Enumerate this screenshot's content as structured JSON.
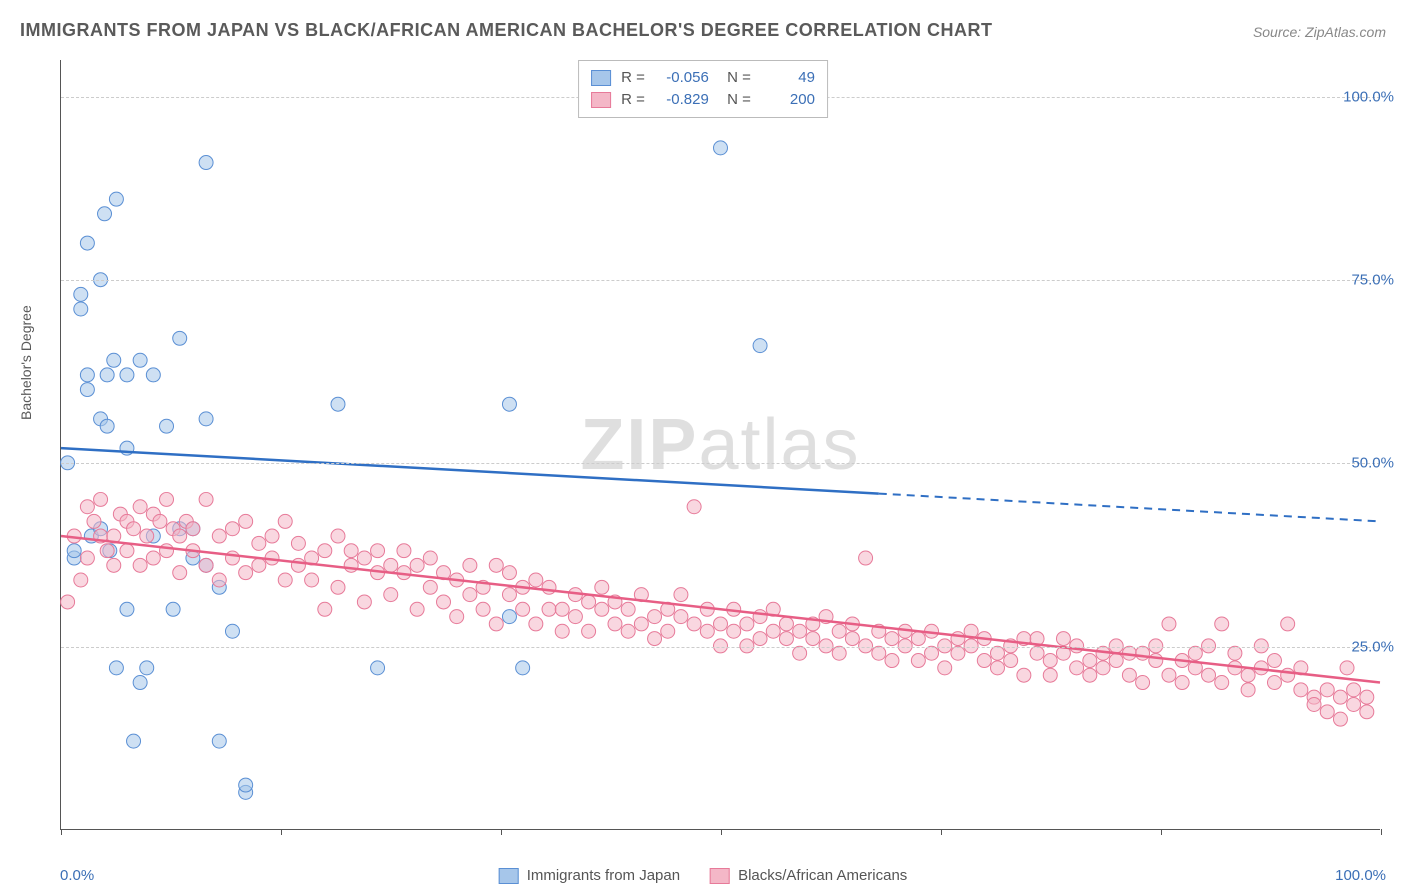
{
  "title": "IMMIGRANTS FROM JAPAN VS BLACK/AFRICAN AMERICAN BACHELOR'S DEGREE CORRELATION CHART",
  "source": "Source: ZipAtlas.com",
  "y_axis_label": "Bachelor's Degree",
  "watermark_a": "ZIP",
  "watermark_b": "atlas",
  "chart": {
    "type": "scatter",
    "xlim": [
      0,
      100
    ],
    "ylim": [
      0,
      105
    ],
    "y_ticks": [
      25,
      50,
      75,
      100
    ],
    "y_tick_labels": [
      "25.0%",
      "50.0%",
      "75.0%",
      "100.0%"
    ],
    "x_ticks": [
      0,
      16.67,
      33.33,
      50,
      66.67,
      83.33,
      100
    ],
    "x_min_label": "0.0%",
    "x_max_label": "100.0%",
    "grid_color": "#cccccc",
    "background_color": "#ffffff",
    "marker_radius": 7,
    "marker_opacity": 0.55,
    "line_width": 2.5,
    "series": [
      {
        "name": "Immigrants from Japan",
        "color_fill": "#a6c6ea",
        "color_stroke": "#5a8fd4",
        "line_color": "#2f6fc4",
        "R": "-0.056",
        "N": "49",
        "trend": {
          "y_at_x0": 52,
          "y_at_x100": 42,
          "solid_until_x": 62
        },
        "points": [
          [
            0.5,
            50
          ],
          [
            1,
            37
          ],
          [
            1,
            38
          ],
          [
            1.5,
            73
          ],
          [
            1.5,
            71
          ],
          [
            2,
            80
          ],
          [
            2,
            62
          ],
          [
            2,
            60
          ],
          [
            2.3,
            40
          ],
          [
            3,
            75
          ],
          [
            3,
            56
          ],
          [
            3,
            41
          ],
          [
            3.3,
            84
          ],
          [
            3.5,
            62
          ],
          [
            3.5,
            55
          ],
          [
            3.7,
            38
          ],
          [
            4,
            64
          ],
          [
            4.2,
            22
          ],
          [
            4.2,
            86
          ],
          [
            5,
            52
          ],
          [
            5,
            62
          ],
          [
            5,
            30
          ],
          [
            5.5,
            12
          ],
          [
            6,
            64
          ],
          [
            6,
            20
          ],
          [
            6.5,
            22
          ],
          [
            7,
            62
          ],
          [
            7,
            40
          ],
          [
            8,
            55
          ],
          [
            8.5,
            30
          ],
          [
            9,
            67
          ],
          [
            9,
            41
          ],
          [
            10,
            41
          ],
          [
            10,
            37
          ],
          [
            11,
            91
          ],
          [
            11,
            56
          ],
          [
            11,
            36
          ],
          [
            12,
            33
          ],
          [
            12,
            12
          ],
          [
            13,
            27
          ],
          [
            14,
            5
          ],
          [
            14,
            6
          ],
          [
            21,
            58
          ],
          [
            24,
            22
          ],
          [
            34,
            58
          ],
          [
            34,
            29
          ],
          [
            35,
            22
          ],
          [
            50,
            93
          ],
          [
            53,
            66
          ]
        ]
      },
      {
        "name": "Blacks/African Americans",
        "color_fill": "#f4b7c7",
        "color_stroke": "#e77a99",
        "line_color": "#e75e85",
        "R": "-0.829",
        "N": "200",
        "trend": {
          "y_at_x0": 40,
          "y_at_x100": 20,
          "solid_until_x": 100
        },
        "points": [
          [
            0.5,
            31
          ],
          [
            1,
            40
          ],
          [
            1.5,
            34
          ],
          [
            2,
            44
          ],
          [
            2,
            37
          ],
          [
            2.5,
            42
          ],
          [
            3,
            40
          ],
          [
            3,
            45
          ],
          [
            3.5,
            38
          ],
          [
            4,
            40
          ],
          [
            4,
            36
          ],
          [
            4.5,
            43
          ],
          [
            5,
            38
          ],
          [
            5,
            42
          ],
          [
            5.5,
            41
          ],
          [
            6,
            44
          ],
          [
            6,
            36
          ],
          [
            6.5,
            40
          ],
          [
            7,
            43
          ],
          [
            7,
            37
          ],
          [
            7.5,
            42
          ],
          [
            8,
            45
          ],
          [
            8,
            38
          ],
          [
            8.5,
            41
          ],
          [
            9,
            40
          ],
          [
            9,
            35
          ],
          [
            9.5,
            42
          ],
          [
            10,
            38
          ],
          [
            10,
            41
          ],
          [
            11,
            45
          ],
          [
            11,
            36
          ],
          [
            12,
            40
          ],
          [
            12,
            34
          ],
          [
            13,
            41
          ],
          [
            13,
            37
          ],
          [
            14,
            42
          ],
          [
            14,
            35
          ],
          [
            15,
            39
          ],
          [
            15,
            36
          ],
          [
            16,
            37
          ],
          [
            16,
            40
          ],
          [
            17,
            42
          ],
          [
            17,
            34
          ],
          [
            18,
            36
          ],
          [
            18,
            39
          ],
          [
            19,
            37
          ],
          [
            19,
            34
          ],
          [
            20,
            30
          ],
          [
            20,
            38
          ],
          [
            21,
            40
          ],
          [
            21,
            33
          ],
          [
            22,
            36
          ],
          [
            22,
            38
          ],
          [
            23,
            37
          ],
          [
            23,
            31
          ],
          [
            24,
            35
          ],
          [
            24,
            38
          ],
          [
            25,
            36
          ],
          [
            25,
            32
          ],
          [
            26,
            35
          ],
          [
            26,
            38
          ],
          [
            27,
            30
          ],
          [
            27,
            36
          ],
          [
            28,
            33
          ],
          [
            28,
            37
          ],
          [
            29,
            31
          ],
          [
            29,
            35
          ],
          [
            30,
            34
          ],
          [
            30,
            29
          ],
          [
            31,
            36
          ],
          [
            31,
            32
          ],
          [
            32,
            33
          ],
          [
            32,
            30
          ],
          [
            33,
            36
          ],
          [
            33,
            28
          ],
          [
            34,
            32
          ],
          [
            34,
            35
          ],
          [
            35,
            30
          ],
          [
            35,
            33
          ],
          [
            36,
            34
          ],
          [
            36,
            28
          ],
          [
            37,
            30
          ],
          [
            37,
            33
          ],
          [
            38,
            30
          ],
          [
            38,
            27
          ],
          [
            39,
            32
          ],
          [
            39,
            29
          ],
          [
            40,
            31
          ],
          [
            40,
            27
          ],
          [
            41,
            30
          ],
          [
            41,
            33
          ],
          [
            42,
            28
          ],
          [
            42,
            31
          ],
          [
            43,
            30
          ],
          [
            43,
            27
          ],
          [
            44,
            28
          ],
          [
            44,
            32
          ],
          [
            45,
            29
          ],
          [
            45,
            26
          ],
          [
            46,
            30
          ],
          [
            46,
            27
          ],
          [
            47,
            29
          ],
          [
            47,
            32
          ],
          [
            48,
            44
          ],
          [
            48,
            28
          ],
          [
            49,
            27
          ],
          [
            49,
            30
          ],
          [
            50,
            28
          ],
          [
            50,
            25
          ],
          [
            51,
            30
          ],
          [
            51,
            27
          ],
          [
            52,
            28
          ],
          [
            52,
            25
          ],
          [
            53,
            29
          ],
          [
            53,
            26
          ],
          [
            54,
            27
          ],
          [
            54,
            30
          ],
          [
            55,
            26
          ],
          [
            55,
            28
          ],
          [
            56,
            27
          ],
          [
            56,
            24
          ],
          [
            57,
            28
          ],
          [
            57,
            26
          ],
          [
            58,
            25
          ],
          [
            58,
            29
          ],
          [
            59,
            27
          ],
          [
            59,
            24
          ],
          [
            60,
            26
          ],
          [
            60,
            28
          ],
          [
            61,
            37
          ],
          [
            61,
            25
          ],
          [
            62,
            27
          ],
          [
            62,
            24
          ],
          [
            63,
            26
          ],
          [
            63,
            23
          ],
          [
            64,
            25
          ],
          [
            64,
            27
          ],
          [
            65,
            26
          ],
          [
            65,
            23
          ],
          [
            66,
            27
          ],
          [
            66,
            24
          ],
          [
            67,
            25
          ],
          [
            67,
            22
          ],
          [
            68,
            26
          ],
          [
            68,
            24
          ],
          [
            69,
            25
          ],
          [
            69,
            27
          ],
          [
            70,
            23
          ],
          [
            70,
            26
          ],
          [
            71,
            24
          ],
          [
            71,
            22
          ],
          [
            72,
            25
          ],
          [
            72,
            23
          ],
          [
            73,
            26
          ],
          [
            73,
            21
          ],
          [
            74,
            24
          ],
          [
            74,
            26
          ],
          [
            75,
            23
          ],
          [
            75,
            21
          ],
          [
            76,
            24
          ],
          [
            76,
            26
          ],
          [
            77,
            22
          ],
          [
            77,
            25
          ],
          [
            78,
            23
          ],
          [
            78,
            21
          ],
          [
            79,
            24
          ],
          [
            79,
            22
          ],
          [
            80,
            23
          ],
          [
            80,
            25
          ],
          [
            81,
            21
          ],
          [
            81,
            24
          ],
          [
            82,
            24
          ],
          [
            82,
            20
          ],
          [
            83,
            23
          ],
          [
            83,
            25
          ],
          [
            84,
            21
          ],
          [
            84,
            28
          ],
          [
            85,
            23
          ],
          [
            85,
            20
          ],
          [
            86,
            24
          ],
          [
            86,
            22
          ],
          [
            87,
            21
          ],
          [
            87,
            25
          ],
          [
            88,
            28
          ],
          [
            88,
            20
          ],
          [
            89,
            22
          ],
          [
            89,
            24
          ],
          [
            90,
            21
          ],
          [
            90,
            19
          ],
          [
            91,
            22
          ],
          [
            91,
            25
          ],
          [
            92,
            20
          ],
          [
            92,
            23
          ],
          [
            93,
            21
          ],
          [
            93,
            28
          ],
          [
            94,
            22
          ],
          [
            94,
            19
          ],
          [
            95,
            18
          ],
          [
            95,
            17
          ],
          [
            96,
            16
          ],
          [
            96,
            19
          ],
          [
            97,
            18
          ],
          [
            97,
            15
          ],
          [
            97.5,
            22
          ],
          [
            98,
            19
          ],
          [
            98,
            17
          ],
          [
            99,
            16
          ],
          [
            99,
            18
          ]
        ]
      }
    ]
  },
  "legend_bottom": [
    {
      "label": "Immigrants from Japan",
      "fill": "#a6c6ea",
      "stroke": "#5a8fd4"
    },
    {
      "label": "Blacks/African Americans",
      "fill": "#f4b7c7",
      "stroke": "#e77a99"
    }
  ]
}
